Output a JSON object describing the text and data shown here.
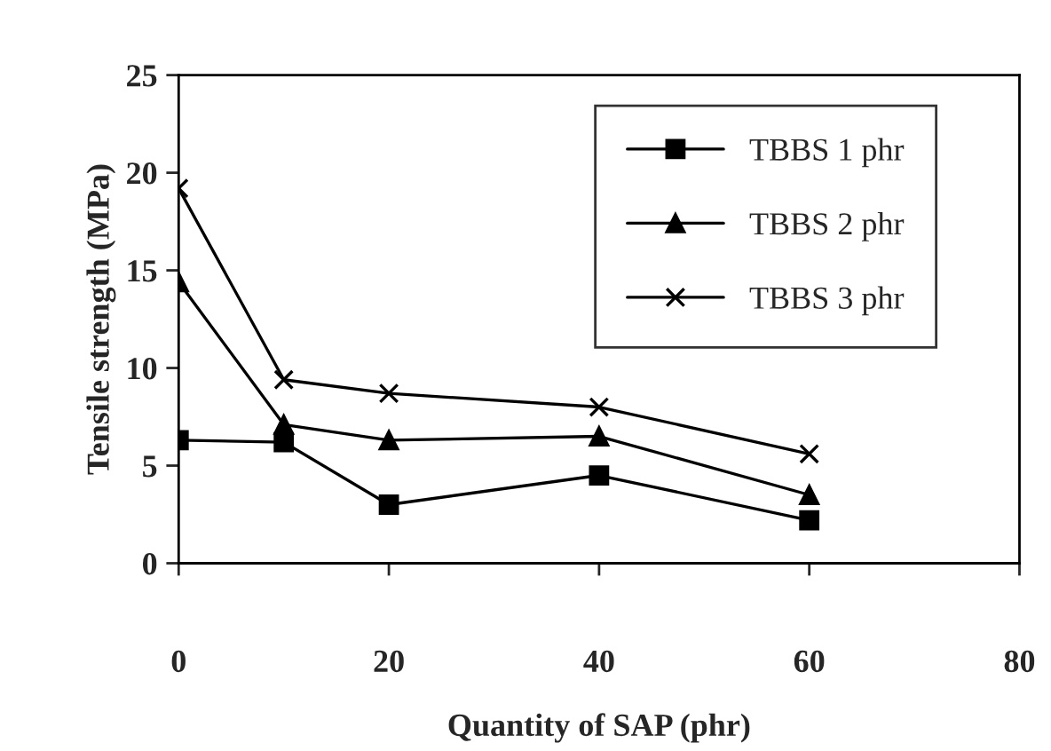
{
  "chart_data": {
    "type": "line",
    "xlabel": "Quantity of SAP (phr)",
    "ylabel": "Tensile strength (MPa)",
    "x": [
      0,
      10,
      20,
      40,
      60
    ],
    "series": [
      {
        "name": "TBBS 1 phr",
        "color": "#000000",
        "marker": "square",
        "values": [
          6.3,
          6.2,
          3.0,
          4.5,
          2.2
        ]
      },
      {
        "name": "TBBS 2 phr",
        "color": "#000000",
        "marker": "triangle",
        "values": [
          14.4,
          7.1,
          6.3,
          6.5,
          3.5
        ]
      },
      {
        "name": "TBBS 3 phr",
        "color": "#000000",
        "marker": "cross",
        "values": [
          19.2,
          9.4,
          8.7,
          8.0,
          5.6
        ]
      }
    ],
    "xlim": [
      0,
      80
    ],
    "xticks": [
      0,
      20,
      40,
      60,
      80
    ],
    "ylim": [
      0,
      25
    ],
    "yticks": [
      0,
      5,
      10,
      15,
      20,
      25
    ],
    "grid": false,
    "legend": "top right",
    "line_style": "solid"
  }
}
